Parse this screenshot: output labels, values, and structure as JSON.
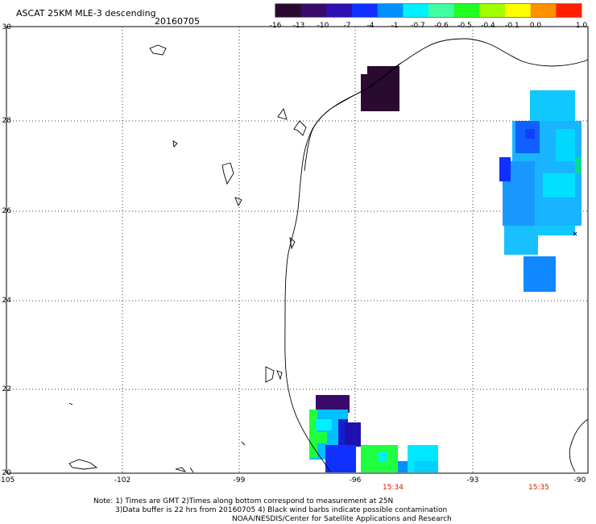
{
  "title": "ASCAT 25KM MLE-3 descending",
  "date": "20160705",
  "colorbar": {
    "labels": [
      "-16",
      "-13",
      "-10",
      "-7",
      "-4",
      "-1",
      "-0.7",
      "-0.6",
      "-0.5",
      "-0.4",
      "-0.1",
      "0.0",
      "1.0"
    ],
    "colors": [
      "#2a0a30",
      "#3a0a6a",
      "#3010b0",
      "#1030ff",
      "#0090ff",
      "#00f0ff",
      "#40ffa0",
      "#20ff20",
      "#a0ff00",
      "#ffff00",
      "#ff9000",
      "#ff2000"
    ]
  },
  "axes": {
    "y_labels": [
      "30",
      "28",
      "26",
      "24",
      "22",
      "20"
    ],
    "x_labels": [
      "-105",
      "-102",
      "-99",
      "-96",
      "-93",
      "-90"
    ]
  },
  "times": [
    "15:34",
    "15:35"
  ],
  "notes": [
    "Note: 1) Times are GMT 2)Times along bottom correspond to measurement at 25N",
    "3)Data buffer is 22 hrs from 20160705 4) Black wind barbs indicate possible contamination",
    "NOAA/NESDIS/Center for Satellite Applications and Research"
  ]
}
